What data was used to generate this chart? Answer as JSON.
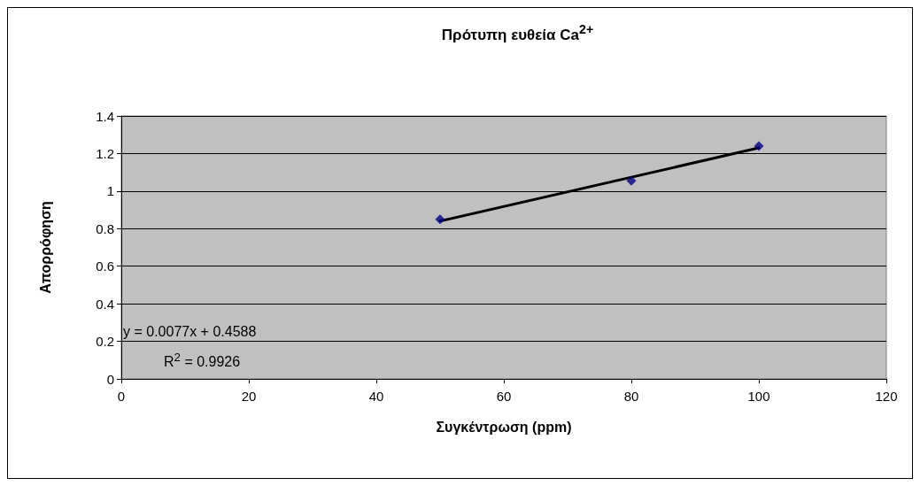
{
  "chart_data": {
    "type": "scatter",
    "title": "Πρότυπη ευθεία Ca$^{2+}$",
    "xlabel": "Συγκέντρωση (ppm)",
    "ylabel": "Απορρόφηση",
    "annotations": [
      "y = 0.0077x + 0.4588",
      "R$^{2}$ = 0.9926"
    ],
    "x": [
      50,
      80,
      100
    ],
    "series": [
      {
        "color": "#000080",
        "marker": "diamond",
        "values": [
          0.85,
          1.055,
          1.24
        ]
      },
      {
        "type": "line",
        "color": "#000000",
        "marker": "none",
        "x": [
          50,
          100
        ],
        "values": [
          0.84,
          1.23
        ]
      }
    ],
    "xlim": [
      0,
      120
    ],
    "xticks": [
      0,
      20,
      40,
      60,
      80,
      100,
      120
    ],
    "ylim": [
      0,
      1.4
    ],
    "yticks": [
      0,
      0.2,
      0.4,
      0.6,
      0.8,
      1,
      1.2,
      1.4
    ],
    "grid": "y"
  }
}
